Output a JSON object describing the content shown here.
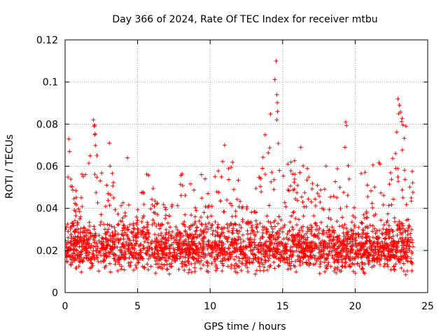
{
  "chart_data": {
    "type": "scatter",
    "title": "Day 366 of 2024, Rate Of TEC Index for receiver mtbu",
    "xlabel": "GPS time / hours",
    "ylabel": "ROTI / TECUs",
    "xlim": [
      0,
      25
    ],
    "ylim": [
      0,
      0.12
    ],
    "x_ticks": [
      0,
      5,
      10,
      15,
      20,
      25
    ],
    "x_tick_labels": [
      "0",
      "5",
      "10",
      "15",
      "20",
      "25"
    ],
    "y_ticks": [
      0,
      0.02,
      0.04,
      0.06,
      0.08,
      0.1,
      0.12
    ],
    "y_tick_labels": [
      "0",
      "0.02",
      "0.04",
      "0.06",
      "0.08",
      "0.1",
      "0.12"
    ],
    "grid": true,
    "marker": "+",
    "color": "#ff0000",
    "series": [
      {
        "name": "ROTI",
        "x_range": [
          0,
          24
        ],
        "typical_range": [
          0.008,
          0.035
        ],
        "envelope": [
          [
            0.0,
            0.045
          ],
          [
            0.25,
            0.073
          ],
          [
            0.5,
            0.05
          ],
          [
            1.0,
            0.055
          ],
          [
            1.5,
            0.06
          ],
          [
            2.0,
            0.082
          ],
          [
            2.5,
            0.065
          ],
          [
            3.0,
            0.07
          ],
          [
            3.5,
            0.045
          ],
          [
            4.0,
            0.045
          ],
          [
            4.3,
            0.063
          ],
          [
            5.0,
            0.05
          ],
          [
            5.8,
            0.06
          ],
          [
            6.5,
            0.04
          ],
          [
            7.2,
            0.045
          ],
          [
            8.0,
            0.058
          ],
          [
            9.0,
            0.05
          ],
          [
            9.5,
            0.056
          ],
          [
            10.5,
            0.06
          ],
          [
            11.0,
            0.07
          ],
          [
            11.5,
            0.065
          ],
          [
            12.0,
            0.06
          ],
          [
            12.5,
            0.05
          ],
          [
            13.0,
            0.045
          ],
          [
            13.5,
            0.06
          ],
          [
            14.0,
            0.087
          ],
          [
            14.5,
            0.11
          ],
          [
            15.0,
            0.07
          ],
          [
            15.5,
            0.065
          ],
          [
            16.0,
            0.065
          ],
          [
            16.5,
            0.06
          ],
          [
            17.0,
            0.06
          ],
          [
            17.5,
            0.05
          ],
          [
            18.0,
            0.065
          ],
          [
            18.5,
            0.055
          ],
          [
            19.0,
            0.063
          ],
          [
            19.4,
            0.081
          ],
          [
            20.0,
            0.055
          ],
          [
            20.5,
            0.058
          ],
          [
            21.0,
            0.06
          ],
          [
            21.5,
            0.065
          ],
          [
            22.0,
            0.06
          ],
          [
            22.5,
            0.063
          ],
          [
            23.0,
            0.092
          ],
          [
            23.5,
            0.078
          ],
          [
            24.0,
            0.06
          ]
        ],
        "outliers": [
          [
            14.55,
            0.11
          ],
          [
            14.6,
            0.094
          ],
          [
            14.65,
            0.086
          ],
          [
            14.6,
            0.082
          ],
          [
            22.95,
            0.092
          ],
          [
            23.05,
            0.089
          ],
          [
            23.0,
            0.085
          ],
          [
            19.35,
            0.081
          ],
          [
            1.95,
            0.082
          ],
          [
            2.0,
            0.079
          ],
          [
            2.05,
            0.075
          ],
          [
            0.25,
            0.073
          ],
          [
            3.05,
            0.071
          ],
          [
            11.0,
            0.07
          ],
          [
            13.8,
            0.075
          ],
          [
            23.5,
            0.079
          ],
          [
            19.3,
            0.069
          ],
          [
            4.3,
            0.064
          ],
          [
            16.25,
            0.069
          ],
          [
            9.4,
            0.056
          ]
        ]
      }
    ]
  }
}
